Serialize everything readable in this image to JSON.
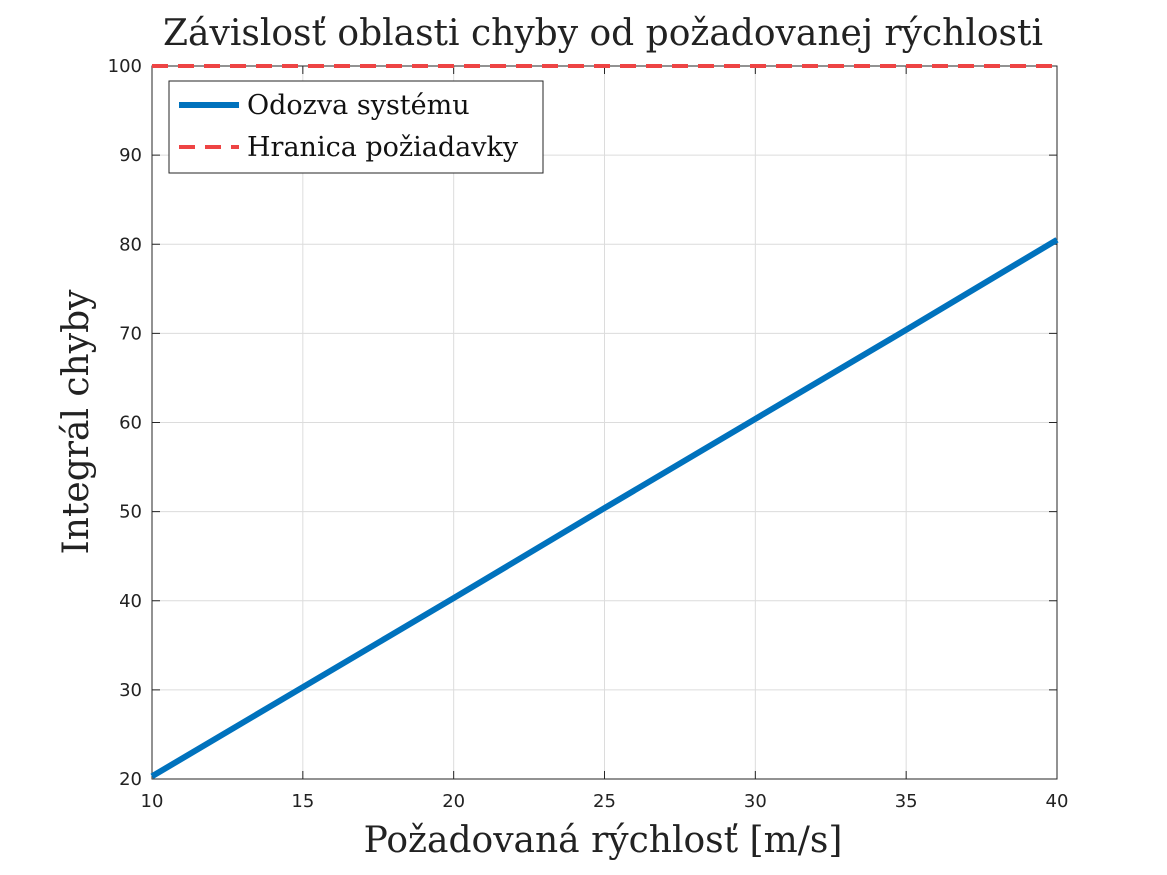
{
  "chart_data": {
    "type": "line",
    "title": "Závislosť oblasti chyby od požadovanej rýchlosti",
    "xlabel": "Požadovaná rýchlosť [m/s]",
    "ylabel": "Integrál chyby",
    "xlim": [
      10,
      40
    ],
    "ylim": [
      20,
      100
    ],
    "xticks": [
      10,
      15,
      20,
      25,
      30,
      35,
      40
    ],
    "yticks": [
      20,
      30,
      40,
      50,
      60,
      70,
      80,
      90,
      100
    ],
    "grid": true,
    "legend_position": "top-left",
    "series": [
      {
        "name": "Odozva systému",
        "style": "solid",
        "color": "#0072BD",
        "x": [
          10,
          15,
          20,
          25,
          30,
          35,
          40
        ],
        "y": [
          20.3,
          30.3,
          40.3,
          50.4,
          60.4,
          70.4,
          80.5
        ]
      },
      {
        "name": "Hranica požiadavky",
        "style": "dashed",
        "color": "#EE4444",
        "x": [
          10,
          40
        ],
        "y": [
          100,
          100
        ]
      }
    ]
  }
}
